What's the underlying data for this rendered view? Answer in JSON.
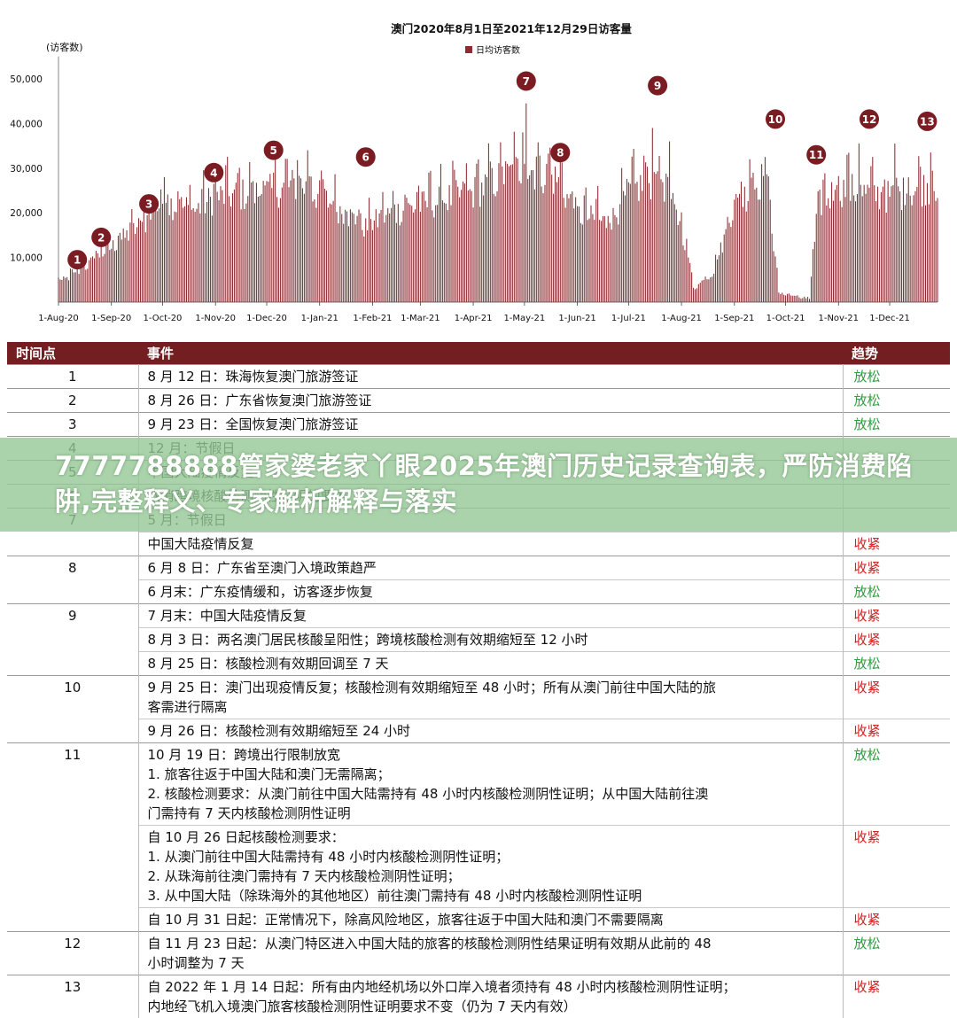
{
  "chart_data": {
    "type": "bar",
    "title": "澳门2020年8月1日至2021年12月29日访客量",
    "legend": "日均访客数",
    "legend_position": "top",
    "ylabel": "(访客数)",
    "ylim": [
      0,
      55000
    ],
    "yticks": [
      "50,000",
      "40,000",
      "30,000",
      "20,000",
      "10,000"
    ],
    "ytick_values": [
      50000,
      40000,
      30000,
      20000,
      10000
    ],
    "start_date": "2020-08-01",
    "end_date": "2021-12-29",
    "xticks": [
      "1-Aug-20",
      "1-Sep-20",
      "1-Oct-20",
      "1-Nov-20",
      "1-Dec-20",
      "1-Jan-21",
      "1-Feb-21",
      "1-Mar-21",
      "1-Apr-21",
      "1-May-21",
      "1-Jun-21",
      "1-Jul-21",
      "1-Aug-21",
      "1-Sep-21",
      "1-Oct-21",
      "1-Nov-21",
      "1-Dec-21"
    ],
    "series_color": "#8b2e33",
    "key_points": [
      {
        "date": "2020-08-01",
        "value": 4500
      },
      {
        "date": "2020-08-12",
        "value": 6500
      },
      {
        "date": "2020-08-26",
        "value": 11000
      },
      {
        "date": "2020-09-01",
        "value": 12500
      },
      {
        "date": "2020-09-23",
        "value": 19000
      },
      {
        "date": "2020-10-01",
        "value": 23000
      },
      {
        "date": "2020-10-20",
        "value": 21000
      },
      {
        "date": "2020-11-01",
        "value": 24000
      },
      {
        "date": "2020-12-01",
        "value": 25000
      },
      {
        "date": "2020-12-20",
        "value": 27000
      },
      {
        "date": "2021-01-10",
        "value": 22000
      },
      {
        "date": "2021-01-28",
        "value": 17000
      },
      {
        "date": "2021-02-10",
        "value": 20000
      },
      {
        "date": "2021-03-01",
        "value": 22000
      },
      {
        "date": "2021-04-01",
        "value": 25000
      },
      {
        "date": "2021-05-01",
        "value": 31000
      },
      {
        "date": "2021-05-20",
        "value": 28000
      },
      {
        "date": "2021-06-01",
        "value": 20000
      },
      {
        "date": "2021-06-20",
        "value": 18000
      },
      {
        "date": "2021-07-01",
        "value": 25000
      },
      {
        "date": "2021-07-20",
        "value": 29000
      },
      {
        "date": "2021-08-04",
        "value": 13000
      },
      {
        "date": "2021-08-08",
        "value": 3000
      },
      {
        "date": "2021-08-20",
        "value": 7000
      },
      {
        "date": "2021-09-01",
        "value": 22000
      },
      {
        "date": "2021-09-20",
        "value": 29000
      },
      {
        "date": "2021-09-27",
        "value": 2000
      },
      {
        "date": "2021-10-15",
        "value": 800
      },
      {
        "date": "2021-10-20",
        "value": 22000
      },
      {
        "date": "2021-11-01",
        "value": 26000
      },
      {
        "date": "2021-12-01",
        "value": 24000
      },
      {
        "date": "2021-12-29",
        "value": 27000
      }
    ],
    "spikes": [
      {
        "date": "2020-08-12",
        "value": 9000
      },
      {
        "date": "2020-08-26",
        "value": 13000
      },
      {
        "date": "2020-09-23",
        "value": 21000
      },
      {
        "date": "2020-10-02",
        "value": 28000
      },
      {
        "date": "2020-10-31",
        "value": 26500
      },
      {
        "date": "2020-12-05",
        "value": 29000
      },
      {
        "date": "2020-12-25",
        "value": 34000
      },
      {
        "date": "2021-03-06",
        "value": 29000
      },
      {
        "date": "2021-04-03",
        "value": 31000
      },
      {
        "date": "2021-04-30",
        "value": 38000
      },
      {
        "date": "2021-05-02",
        "value": 44500
      },
      {
        "date": "2021-05-22",
        "value": 33000
      },
      {
        "date": "2021-06-13",
        "value": 26000
      },
      {
        "date": "2021-07-15",
        "value": 39000
      },
      {
        "date": "2021-07-25",
        "value": 36000
      },
      {
        "date": "2021-09-10",
        "value": 32000
      },
      {
        "date": "2021-09-19",
        "value": 32500
      },
      {
        "date": "2021-11-06",
        "value": 33000
      },
      {
        "date": "2021-11-13",
        "value": 35500
      },
      {
        "date": "2021-12-04",
        "value": 35500
      },
      {
        "date": "2021-12-25",
        "value": 33500
      }
    ],
    "markers": [
      {
        "label": "1",
        "date": "2020-08-12",
        "value": 9500
      },
      {
        "label": "2",
        "date": "2020-08-26",
        "value": 14500
      },
      {
        "label": "3",
        "date": "2020-09-23",
        "value": 22000
      },
      {
        "label": "4",
        "date": "2020-10-31",
        "value": 29000
      },
      {
        "label": "5",
        "date": "2020-12-05",
        "value": 34000
      },
      {
        "label": "6",
        "date": "2021-01-28",
        "value": 32500
      },
      {
        "label": "7",
        "date": "2021-05-02",
        "value": 49500
      },
      {
        "label": "8",
        "date": "2021-05-22",
        "value": 33500
      },
      {
        "label": "9",
        "date": "2021-07-18",
        "value": 48500
      },
      {
        "label": "10",
        "date": "2021-09-25",
        "value": 41000
      },
      {
        "label": "11",
        "date": "2021-10-19",
        "value": 33000
      },
      {
        "label": "12",
        "date": "2021-11-19",
        "value": 41000
      },
      {
        "label": "13",
        "date": "2021-12-23",
        "value": 40500
      }
    ]
  },
  "table": {
    "headers": {
      "point": "时间点",
      "event": "事件",
      "trend": "趋势"
    },
    "rows": [
      {
        "point": "1",
        "lines": [
          "8 月 12 日：珠海恢复澳门旅游签证"
        ],
        "trend": "放松",
        "kind": "loose",
        "start": true
      },
      {
        "point": "2",
        "lines": [
          "8 月 26 日：广东省恢复澳门旅游签证"
        ],
        "trend": "放松",
        "kind": "loose",
        "start": true
      },
      {
        "point": "3",
        "lines": [
          "9 月 23 日：全国恢复澳门旅游签证"
        ],
        "trend": "放松",
        "kind": "loose",
        "start": true
      },
      {
        "point": "4",
        "lines": [
          "12 月：节假日"
        ],
        "trend": "",
        "kind": "loose",
        "start": true
      },
      {
        "point": "5",
        "lines": [
          "中国大陆疫情反复"
        ],
        "trend": "",
        "kind": "tight",
        "start": true
      },
      {
        "point": "6",
        "lines": [
          "取消跨境核酸检测阴性证明的要求"
        ],
        "trend": "",
        "kind": "loose",
        "start": true
      },
      {
        "point": "7",
        "lines": [
          "5 月：节假日"
        ],
        "trend": "",
        "kind": "loose",
        "start": true
      },
      {
        "point": "",
        "lines": [
          "中国大陆疫情反复"
        ],
        "trend": "收紧",
        "kind": "tight",
        "start": false
      },
      {
        "point": "8",
        "lines": [
          "6 月 8 日：广东省至澳门入境政策趋严"
        ],
        "trend": "收紧",
        "kind": "tight",
        "start": true
      },
      {
        "point": "",
        "lines": [
          "6 月末：广东疫情缓和，访客逐步恢复"
        ],
        "trend": "放松",
        "kind": "loose",
        "start": false
      },
      {
        "point": "9",
        "lines": [
          "7 月末：中国大陆疫情反复"
        ],
        "trend": "收紧",
        "kind": "tight",
        "start": true
      },
      {
        "point": "",
        "lines": [
          "8 月 3 日：两名澳门居民核酸呈阳性；跨境核酸检测有效期缩短至 12 小时"
        ],
        "trend": "收紧",
        "kind": "tight",
        "start": false
      },
      {
        "point": "",
        "lines": [
          "8 月 25 日：核酸检测有效期回调至 7 天"
        ],
        "trend": "放松",
        "kind": "loose",
        "start": false
      },
      {
        "point": "10",
        "lines": [
          "9 月 25 日：澳门出现疫情反复；核酸检测有效期缩短至 48 小时；所有从澳门前往中国大陆的旅",
          "客需进行隔离"
        ],
        "trend": "收紧",
        "kind": "tight",
        "start": true
      },
      {
        "point": "",
        "lines": [
          "9 月 26 日：核酸检测有效期缩短至 24 小时"
        ],
        "trend": "收紧",
        "kind": "tight",
        "start": false
      },
      {
        "point": "11",
        "lines": [
          "10 月 19 日：跨境出行限制放宽",
          "1. 旅客往返于中国大陆和澳门无需隔离；",
          "2. 核酸检测要求：从澳门前往中国大陆需持有 48 小时内核酸检测阴性证明；从中国大陆前往澳",
          "门需持有 7 天内核酸检测阴性证明"
        ],
        "trend": "放松",
        "kind": "loose",
        "start": true
      },
      {
        "point": "",
        "lines": [
          "自 10 月 26 日起核酸检测要求：",
          "1. 从澳门前往中国大陆需持有 48 小时内核酸检测阴性证明；",
          "2. 从珠海前往澳门需持有 7 天内核酸检测阴性证明；",
          "3. 从中国大陆（除珠海外的其他地区）前往澳门需持有 48 小时内核酸检测阴性证明"
        ],
        "trend": "收紧",
        "kind": "tight",
        "start": false
      },
      {
        "point": "",
        "lines": [
          "自 10 月 31 日起：正常情况下，除高风险地区，旅客往返于中国大陆和澳门不需要隔离"
        ],
        "trend": "收紧",
        "kind": "tight",
        "start": false
      },
      {
        "point": "12",
        "lines": [
          "自 11 月 23 日起：从澳门特区进入中国大陆的旅客的核酸检测阴性结果证明有效期从此前的 48",
          "小时调整为 7 天"
        ],
        "trend": "放松",
        "kind": "loose",
        "start": true
      },
      {
        "point": "13",
        "lines": [
          "自 2022 年 1 月 14 日起：所有由内地经机场以外口岸入境者须持有 48 小时内核酸检测阴性证明；",
          "内地经飞机入境澳门旅客核酸检测阴性证明要求不变（仍为 7 天内有效）"
        ],
        "trend": "收紧",
        "kind": "tight",
        "start": true
      }
    ]
  },
  "banner": {
    "text": "7777788888管家婆老家丫眼2025年澳门历史记录查询表，严防消费陷阱,完整释义、专家解析解释与落实"
  }
}
